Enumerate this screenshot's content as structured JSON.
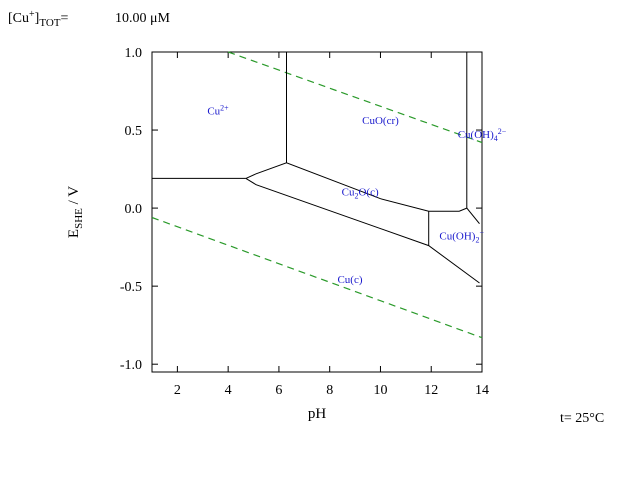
{
  "header": {
    "conc_label_main": "[Cu",
    "conc_label_sup": "+",
    "conc_label_close": "]",
    "conc_label_sub": "TOT",
    "conc_label_eq": "=",
    "conc_value": "10.00 μM"
  },
  "temperature": "t= 25°C",
  "chart_data": {
    "type": "line",
    "title": "",
    "xlabel": "pH",
    "ylabel_main": "E",
    "ylabel_sub": "SHE",
    "ylabel_unit": " / V",
    "xlim": [
      1,
      14
    ],
    "ylim": [
      -1.05,
      1.0
    ],
    "xticks": [
      2,
      4,
      6,
      8,
      10,
      12,
      14
    ],
    "xtick_labels": [
      "2",
      "4",
      "6",
      "8",
      "10",
      "12",
      "14"
    ],
    "yticks": [
      1.0,
      0.5,
      0.0,
      -0.5,
      -1.0
    ],
    "ytick_labels": [
      "1.0",
      "0.5",
      "0.0",
      "-0.5",
      "-1.0"
    ],
    "grid": false,
    "boundaries": [
      {
        "name": "Cu2+/Cu2O",
        "points": [
          [
            1,
            0.19
          ],
          [
            4.7,
            0.19
          ]
        ]
      },
      {
        "name": "Cu2+/CuO",
        "points": [
          [
            6.3,
            0.29
          ],
          [
            6.3,
            1.0
          ]
        ]
      },
      {
        "name": "Cu2O-top",
        "points": [
          [
            4.7,
            0.19
          ],
          [
            5.1,
            0.22
          ],
          [
            6.3,
            0.29
          ],
          [
            10.0,
            0.06
          ],
          [
            11.9,
            -0.02
          ],
          [
            13.1,
            -0.02
          ],
          [
            13.4,
            0.0
          ]
        ]
      },
      {
        "name": "Cu2O-bottom",
        "points": [
          [
            4.7,
            0.19
          ],
          [
            5.1,
            0.15
          ],
          [
            11.9,
            -0.24
          ],
          [
            13.9,
            -0.48
          ]
        ]
      },
      {
        "name": "Cu2O/Cu(OH)2-",
        "points": [
          [
            11.9,
            -0.02
          ],
          [
            11.9,
            -0.24
          ]
        ]
      },
      {
        "name": "CuO/Cu(OH)4 2- upper",
        "points": [
          [
            13.4,
            0.0
          ],
          [
            13.4,
            1.0
          ]
        ]
      },
      {
        "name": "CuO/Cu(OH)4 2- lower",
        "points": [
          [
            13.4,
            0.0
          ],
          [
            13.9,
            -0.1
          ]
        ]
      }
    ],
    "water_lines": [
      {
        "name": "O2/H2O",
        "points": [
          [
            4.0,
            1.0
          ],
          [
            14,
            0.42
          ]
        ]
      },
      {
        "name": "H2O/H2",
        "points": [
          [
            1,
            -0.06
          ],
          [
            14,
            -0.83
          ]
        ]
      }
    ],
    "regions": [
      {
        "label": "Cu",
        "sup": "2+",
        "sub": "",
        "tail": "",
        "x": 3.6,
        "y": 0.6
      },
      {
        "label": "CuO(cr)",
        "sup": "",
        "sub": "",
        "tail": "",
        "x": 10.0,
        "y": 0.54
      },
      {
        "label": "Cu(OH)",
        "sup": "2−",
        "sub": "4",
        "tail": "",
        "x": 14.0,
        "y": 0.45
      },
      {
        "label": "Cu",
        "sup": "",
        "sub": "2",
        "tail": "O(c)",
        "x": 9.2,
        "y": 0.08
      },
      {
        "label": "Cu(OH)",
        "sup": "−",
        "sub": "2",
        "tail": "",
        "x": 13.2,
        "y": -0.2
      },
      {
        "label": "Cu(c)",
        "sup": "",
        "sub": "",
        "tail": "",
        "x": 8.8,
        "y": -0.48
      }
    ],
    "colors": {
      "boundary": "#000000",
      "water": "#2a9a2a",
      "region_label": "#1a1acd"
    }
  }
}
